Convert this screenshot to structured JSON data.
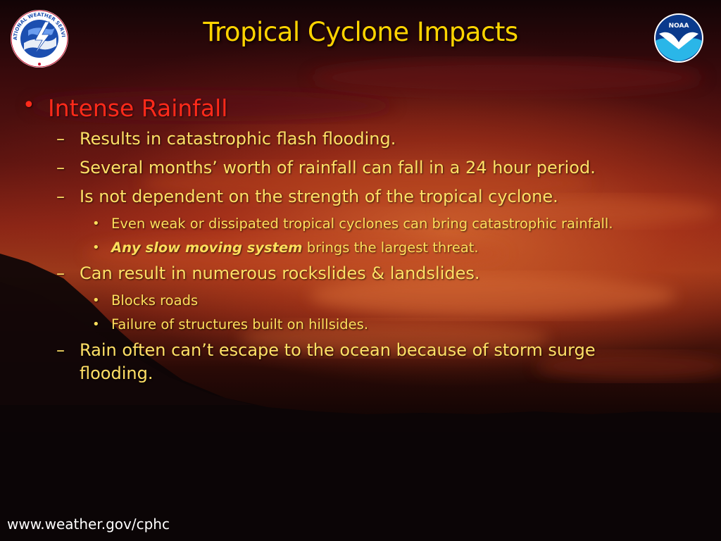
{
  "slide": {
    "title": "Tropical Cyclone Impacts",
    "footer": "www.weather.gov/cphc",
    "logos": {
      "left": {
        "icon": "nws-logo",
        "text": "NATIONAL WEATHER SERVICE"
      },
      "right": {
        "icon": "noaa-logo",
        "text": "NOAA"
      }
    },
    "bullet_chars": {
      "level1": "•",
      "level2": "–",
      "level3": "•"
    },
    "heading": "Intense Rainfall",
    "items": {
      "item1": "Results in catastrophic flash flooding.",
      "item2": "Several months’ worth of rainfall can fall in a 24 hour period.",
      "item3": "Is not dependent on the strength of the tropical cyclone.",
      "item3_sub1": "Even weak or dissipated tropical cyclones can bring catastrophic rainfall.",
      "item3_sub2_emphasis": "Any slow moving system",
      "item3_sub2_rest": " brings the largest threat.",
      "item4": "Can result in numerous rockslides & landslides.",
      "item4_sub1": "Blocks roads",
      "item4_sub2": "Failure of structures built on hillsides.",
      "item5": "Rain often can’t escape to the ocean because of storm surge flooding."
    },
    "colors": {
      "title": "#ffd400",
      "heading": "#ff2a1a",
      "body": "#ffe066",
      "footer": "#ffffff"
    }
  }
}
